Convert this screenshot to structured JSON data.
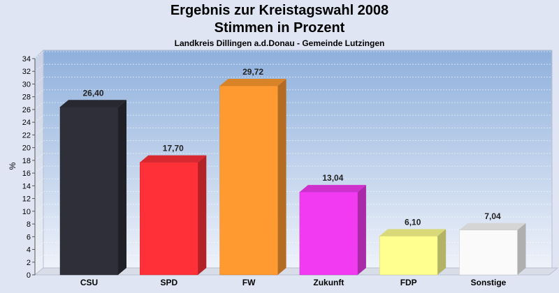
{
  "chart_data": {
    "type": "bar",
    "title": "Ergebnis zur Kreistagswahl 2008",
    "subtitle": "Stimmen in Prozent",
    "caption": "Landkreis Dillingen a.d.Donau - Gemeinde Lutzingen",
    "ylabel": "%",
    "ylim": [
      0,
      34
    ],
    "ytick_step": 2,
    "grid": true,
    "categories": [
      "CSU",
      "SPD",
      "FW",
      "Zukunft",
      "FDP",
      "Sonstige"
    ],
    "values": [
      26.4,
      17.7,
      29.72,
      13.04,
      6.1,
      7.04
    ],
    "value_labels": [
      "26,40",
      "17,70",
      "29,72",
      "13,04",
      "6,10",
      "7,04"
    ],
    "colors": [
      "#2e2f38",
      "#ff3038",
      "#ff9a30",
      "#f23af2",
      "#ffff90",
      "#fafafa"
    ]
  }
}
